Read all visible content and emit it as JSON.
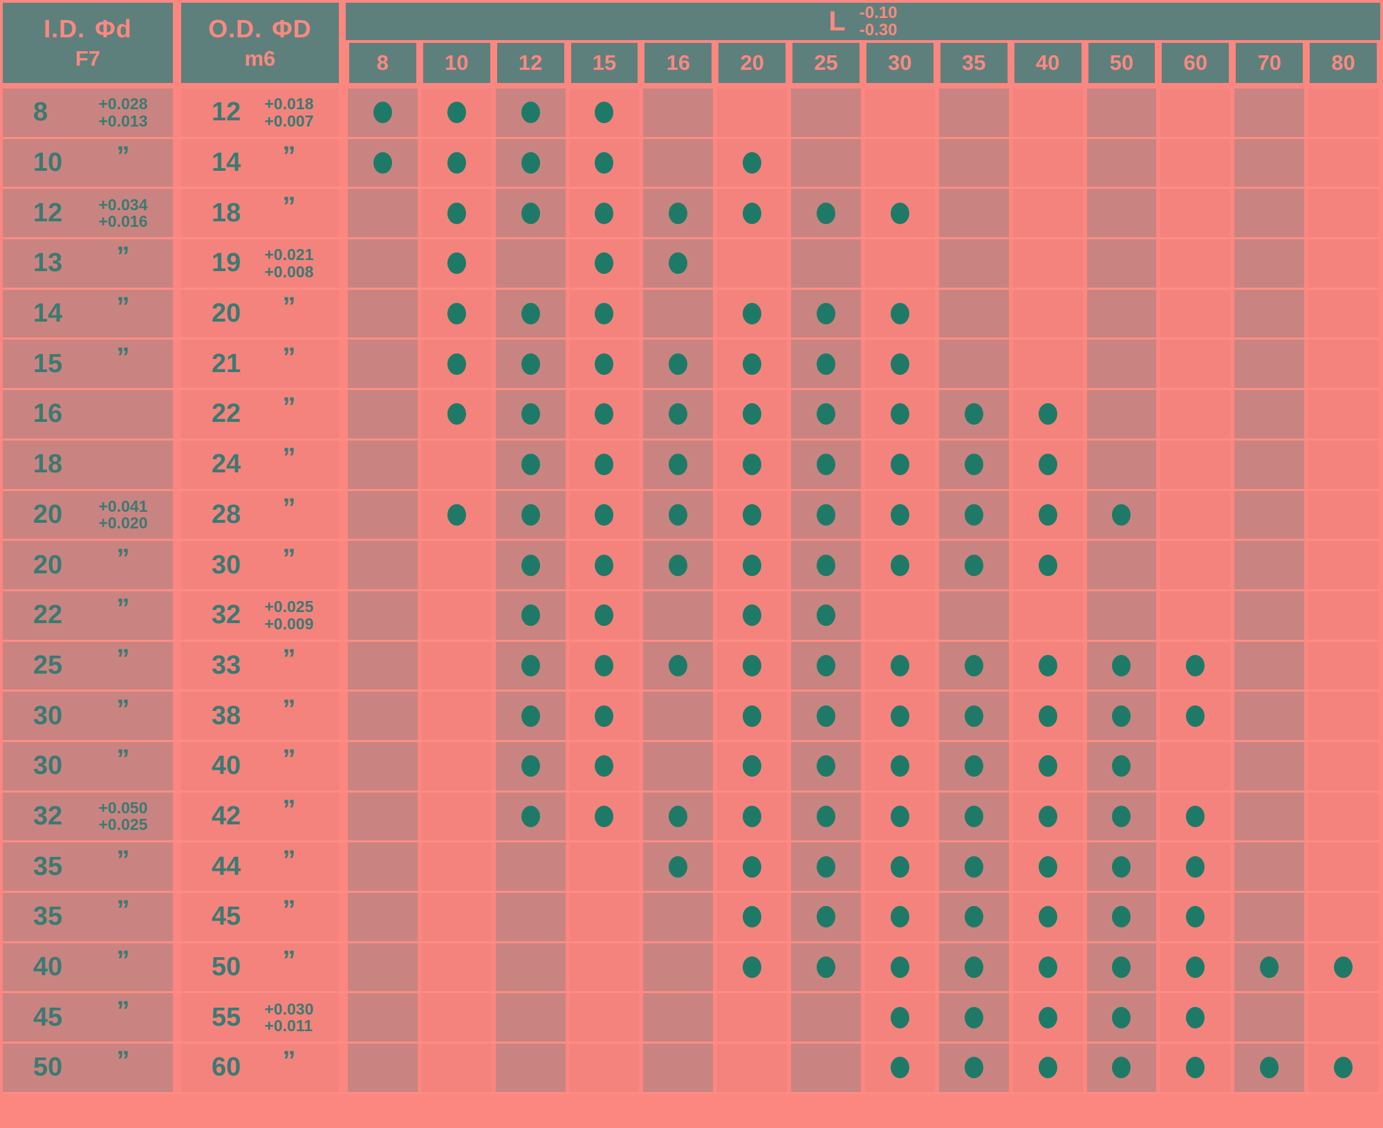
{
  "header": {
    "id": {
      "label": "I.D.",
      "symbol": "Φd",
      "fit": "F7"
    },
    "od": {
      "label": "O.D.",
      "symbol": "ΦD",
      "fit": "m6"
    },
    "length": {
      "label": "L",
      "tol_upper": "-0.10",
      "tol_lower": "-0.30"
    },
    "length_columns": [
      "8",
      "10",
      "12",
      "15",
      "16",
      "20",
      "25",
      "30",
      "35",
      "40",
      "50",
      "60",
      "70",
      "80"
    ]
  },
  "ditto_mark": "”",
  "rows": [
    {
      "id": "8",
      "id_tol_upper": "+0.028",
      "id_tol_lower": "+0.013",
      "id_ditto": false,
      "od": "12",
      "od_tol_upper": "+0.018",
      "od_tol_lower": "+0.007",
      "od_ditto": false,
      "lengths": [
        "8",
        "10",
        "12",
        "15"
      ]
    },
    {
      "id": "10",
      "id_ditto": true,
      "od": "14",
      "od_ditto": true,
      "lengths": [
        "8",
        "10",
        "12",
        "15",
        "20"
      ]
    },
    {
      "id": "12",
      "id_tol_upper": "+0.034",
      "id_tol_lower": "+0.016",
      "id_ditto": false,
      "od": "18",
      "od_ditto": true,
      "lengths": [
        "10",
        "12",
        "15",
        "16",
        "20",
        "25",
        "30"
      ]
    },
    {
      "id": "13",
      "id_ditto": true,
      "od": "19",
      "od_tol_upper": "+0.021",
      "od_tol_lower": "+0.008",
      "od_ditto": false,
      "lengths": [
        "10",
        "15",
        "16"
      ]
    },
    {
      "id": "14",
      "id_ditto": true,
      "od": "20",
      "od_ditto": true,
      "lengths": [
        "10",
        "12",
        "15",
        "20",
        "25",
        "30"
      ]
    },
    {
      "id": "15",
      "id_ditto": true,
      "od": "21",
      "od_ditto": true,
      "lengths": [
        "10",
        "12",
        "15",
        "16",
        "20",
        "25",
        "30"
      ]
    },
    {
      "id": "16",
      "id_ditto": false,
      "od": "22",
      "od_ditto": true,
      "lengths": [
        "10",
        "12",
        "15",
        "16",
        "20",
        "25",
        "30",
        "35",
        "40"
      ]
    },
    {
      "id": "18",
      "id_ditto": false,
      "od": "24",
      "od_ditto": true,
      "lengths": [
        "12",
        "15",
        "16",
        "20",
        "25",
        "30",
        "35",
        "40"
      ]
    },
    {
      "id": "20",
      "id_tol_upper": "+0.041",
      "id_tol_lower": "+0.020",
      "id_ditto": false,
      "od": "28",
      "od_ditto": true,
      "lengths": [
        "10",
        "12",
        "15",
        "16",
        "20",
        "25",
        "30",
        "35",
        "40",
        "50"
      ]
    },
    {
      "id": "20",
      "id_ditto": true,
      "od": "30",
      "od_ditto": true,
      "lengths": [
        "12",
        "15",
        "16",
        "20",
        "25",
        "30",
        "35",
        "40"
      ]
    },
    {
      "id": "22",
      "id_ditto": true,
      "od": "32",
      "od_tol_upper": "+0.025",
      "od_tol_lower": "+0.009",
      "od_ditto": false,
      "lengths": [
        "12",
        "15",
        "20",
        "25"
      ]
    },
    {
      "id": "25",
      "id_ditto": true,
      "od": "33",
      "od_ditto": true,
      "lengths": [
        "12",
        "15",
        "16",
        "20",
        "25",
        "30",
        "35",
        "40",
        "50",
        "60"
      ]
    },
    {
      "id": "30",
      "id_ditto": true,
      "od": "38",
      "od_ditto": true,
      "lengths": [
        "12",
        "15",
        "20",
        "25",
        "30",
        "35",
        "40",
        "50",
        "60"
      ]
    },
    {
      "id": "30",
      "id_ditto": true,
      "od": "40",
      "od_ditto": true,
      "lengths": [
        "12",
        "15",
        "20",
        "25",
        "30",
        "35",
        "40",
        "50"
      ]
    },
    {
      "id": "32",
      "id_tol_upper": "+0.050",
      "id_tol_lower": "+0.025",
      "id_ditto": false,
      "od": "42",
      "od_ditto": true,
      "lengths": [
        "12",
        "15",
        "16",
        "20",
        "25",
        "30",
        "35",
        "40",
        "50",
        "60"
      ]
    },
    {
      "id": "35",
      "id_ditto": true,
      "od": "44",
      "od_ditto": true,
      "lengths": [
        "16",
        "20",
        "25",
        "30",
        "35",
        "40",
        "50",
        "60"
      ]
    },
    {
      "id": "35",
      "id_ditto": true,
      "od": "45",
      "od_ditto": true,
      "lengths": [
        "20",
        "25",
        "30",
        "35",
        "40",
        "50",
        "60"
      ]
    },
    {
      "id": "40",
      "id_ditto": true,
      "od": "50",
      "od_ditto": true,
      "lengths": [
        "20",
        "25",
        "30",
        "35",
        "40",
        "50",
        "60",
        "70",
        "80"
      ]
    },
    {
      "id": "45",
      "id_ditto": true,
      "od": "55",
      "od_tol_upper": "+0.030",
      "od_tol_lower": "+0.011",
      "od_ditto": false,
      "lengths": [
        "30",
        "35",
        "40",
        "50",
        "60"
      ]
    },
    {
      "id": "50",
      "id_ditto": true,
      "od": "60",
      "od_ditto": true,
      "lengths": [
        "30",
        "35",
        "40",
        "50",
        "60",
        "70",
        "80"
      ]
    }
  ],
  "colors": {
    "background_pink": "#fb8780",
    "grid_pink": "#fc8d85",
    "cell_dark": "#c98481",
    "cell_light": "#f4837d",
    "header_slate": "#5e807c",
    "header_text_pink": "#fa8981",
    "value_teal": "#3a7a72",
    "dot_teal": "#1e7a67"
  }
}
